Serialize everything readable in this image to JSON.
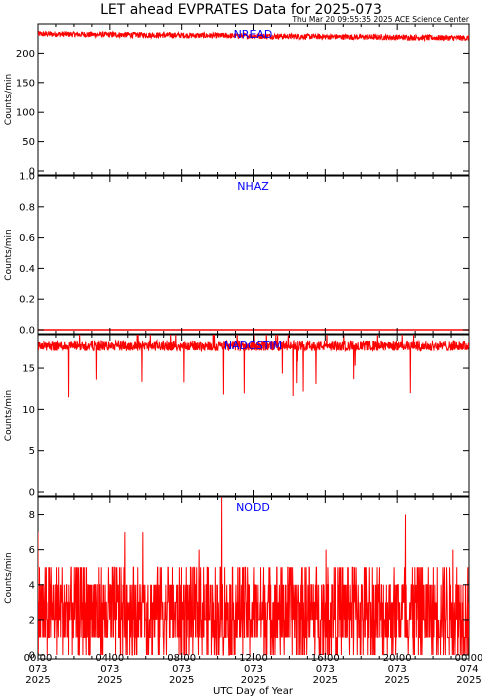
{
  "chart_data": {
    "type": "line",
    "title": "LET ahead EVPRATES Data for 2025-073",
    "subtitle": "Thu Mar 20 09:55:35 2025 ACE Science Center",
    "xlabel": "UTC Day of Year",
    "x_range_hours": [
      0,
      24
    ],
    "x_ticks": [
      {
        "time": "00:00",
        "day": "073",
        "year": "2025"
      },
      {
        "time": "04:00",
        "day": "073",
        "year": "2025"
      },
      {
        "time": "08:00",
        "day": "073",
        "year": "2025"
      },
      {
        "time": "12:00",
        "day": "073",
        "year": "2025"
      },
      {
        "time": "16:00",
        "day": "073",
        "year": "2025"
      },
      {
        "time": "20:00",
        "day": "073",
        "year": "2025"
      },
      {
        "time": "00:00",
        "day": "074",
        "year": "2025"
      }
    ],
    "series_color": "#ff0000",
    "panels": [
      {
        "name": "NREAD",
        "ylabel": "Counts/min",
        "ylim": [
          0,
          250
        ],
        "yticks": [
          0,
          50,
          100,
          150,
          200
        ],
        "mean_start": 233,
        "mean_end": 226,
        "noise_amp": 5,
        "spike_min": 0,
        "spike_max": 0
      },
      {
        "name": "NHAZ",
        "ylabel": "Counts/min",
        "ylim": [
          0,
          1
        ],
        "yticks": [
          0.0,
          0.2,
          0.4,
          0.6,
          0.8,
          1.0
        ],
        "mean_start": 0,
        "mean_end": 0,
        "noise_amp": 0,
        "spike_min": 0,
        "spike_max": 0
      },
      {
        "name": "NADCSTIM",
        "ylabel": "Counts/min",
        "ylim": [
          0,
          19
        ],
        "yticks": [
          0,
          5,
          10,
          15
        ],
        "mean_start": 17.7,
        "mean_end": 17.7,
        "noise_amp": 0.6,
        "spike_min": 10,
        "spike_max": 17
      },
      {
        "name": "NODD",
        "ylabel": "Counts/min",
        "ylim": [
          0,
          9
        ],
        "yticks": [
          0,
          2,
          4,
          6,
          8
        ],
        "mean_start": 2.5,
        "mean_end": 2.5,
        "noise_amp": 2.5,
        "spike_min": 0,
        "spike_max": 9
      }
    ]
  }
}
